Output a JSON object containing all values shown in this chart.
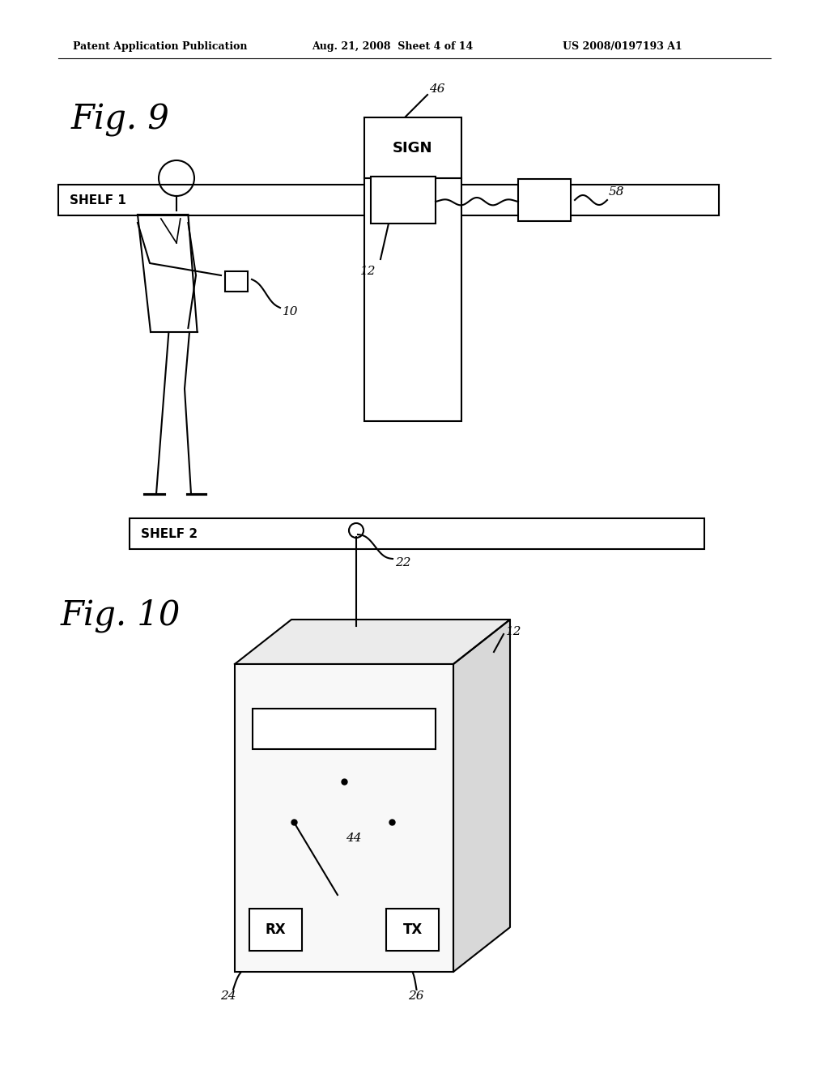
{
  "background_color": "#ffffff",
  "header_text": "Patent Application Publication",
  "header_date": "Aug. 21, 2008  Sheet 4 of 14",
  "header_patent": "US 2008/0197193 A1",
  "fig9_label": "Fig. 9",
  "fig10_label": "Fig. 10",
  "shelf1_text": "SHELF 1",
  "shelf2_text": "SHELF 2",
  "sign_text": "SIGN",
  "rx_text": "RX",
  "tx_text": "TX",
  "label_10": "10",
  "label_12_fig9": "12",
  "label_12_fig10": "12",
  "label_22": "22",
  "label_24": "24",
  "label_26": "26",
  "label_44": "44",
  "label_46": "46",
  "label_58": "58"
}
